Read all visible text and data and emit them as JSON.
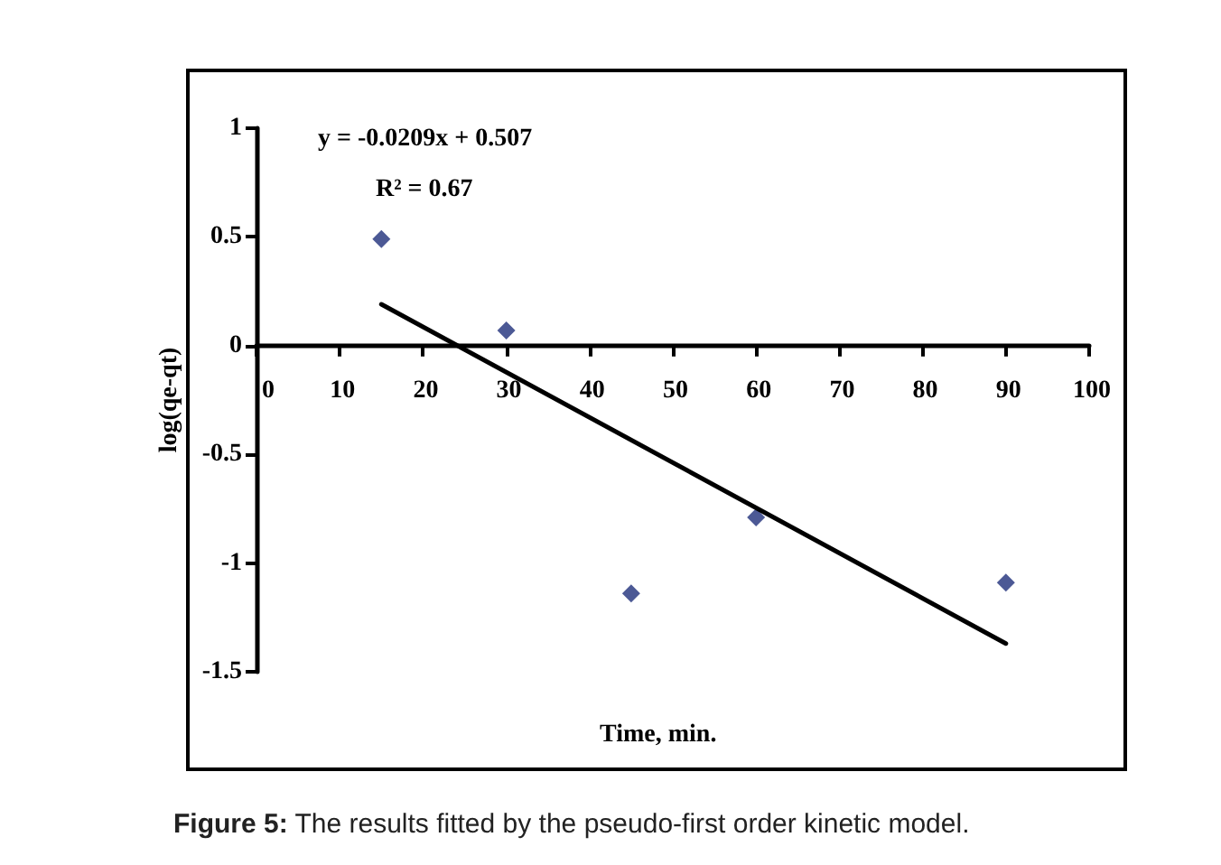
{
  "chart_data": {
    "type": "scatter",
    "xlabel": "Time, min.",
    "ylabel": "log(qe-qt)",
    "annotations": [
      "y = -0.0209x + 0.507",
      "R² = 0.67",
      "Figure 5: The results fitted by the pseudo-first order kinetic model."
    ],
    "series": [
      {
        "color": "#1f2f7a",
        "marker": "diamond",
        "x": [
          15,
          30,
          45,
          60,
          90
        ],
        "values": [
          0.49,
          0.07,
          -1.14,
          -0.79,
          -1.09
        ]
      },
      {
        "type": "line",
        "color": "#000000",
        "marker": "none",
        "line_style": "solid",
        "x": [
          15,
          90
        ],
        "values": [
          0.19,
          -1.37
        ]
      }
    ],
    "xlim": [
      0,
      100
    ],
    "xticks": [
      0,
      10,
      20,
      30,
      40,
      50,
      60,
      70,
      80,
      90,
      100
    ],
    "ylim": [
      -1.5,
      1
    ],
    "yticks": [
      -1.5,
      -1,
      -0.5,
      0,
      0.5,
      1
    ],
    "grid": false
  }
}
